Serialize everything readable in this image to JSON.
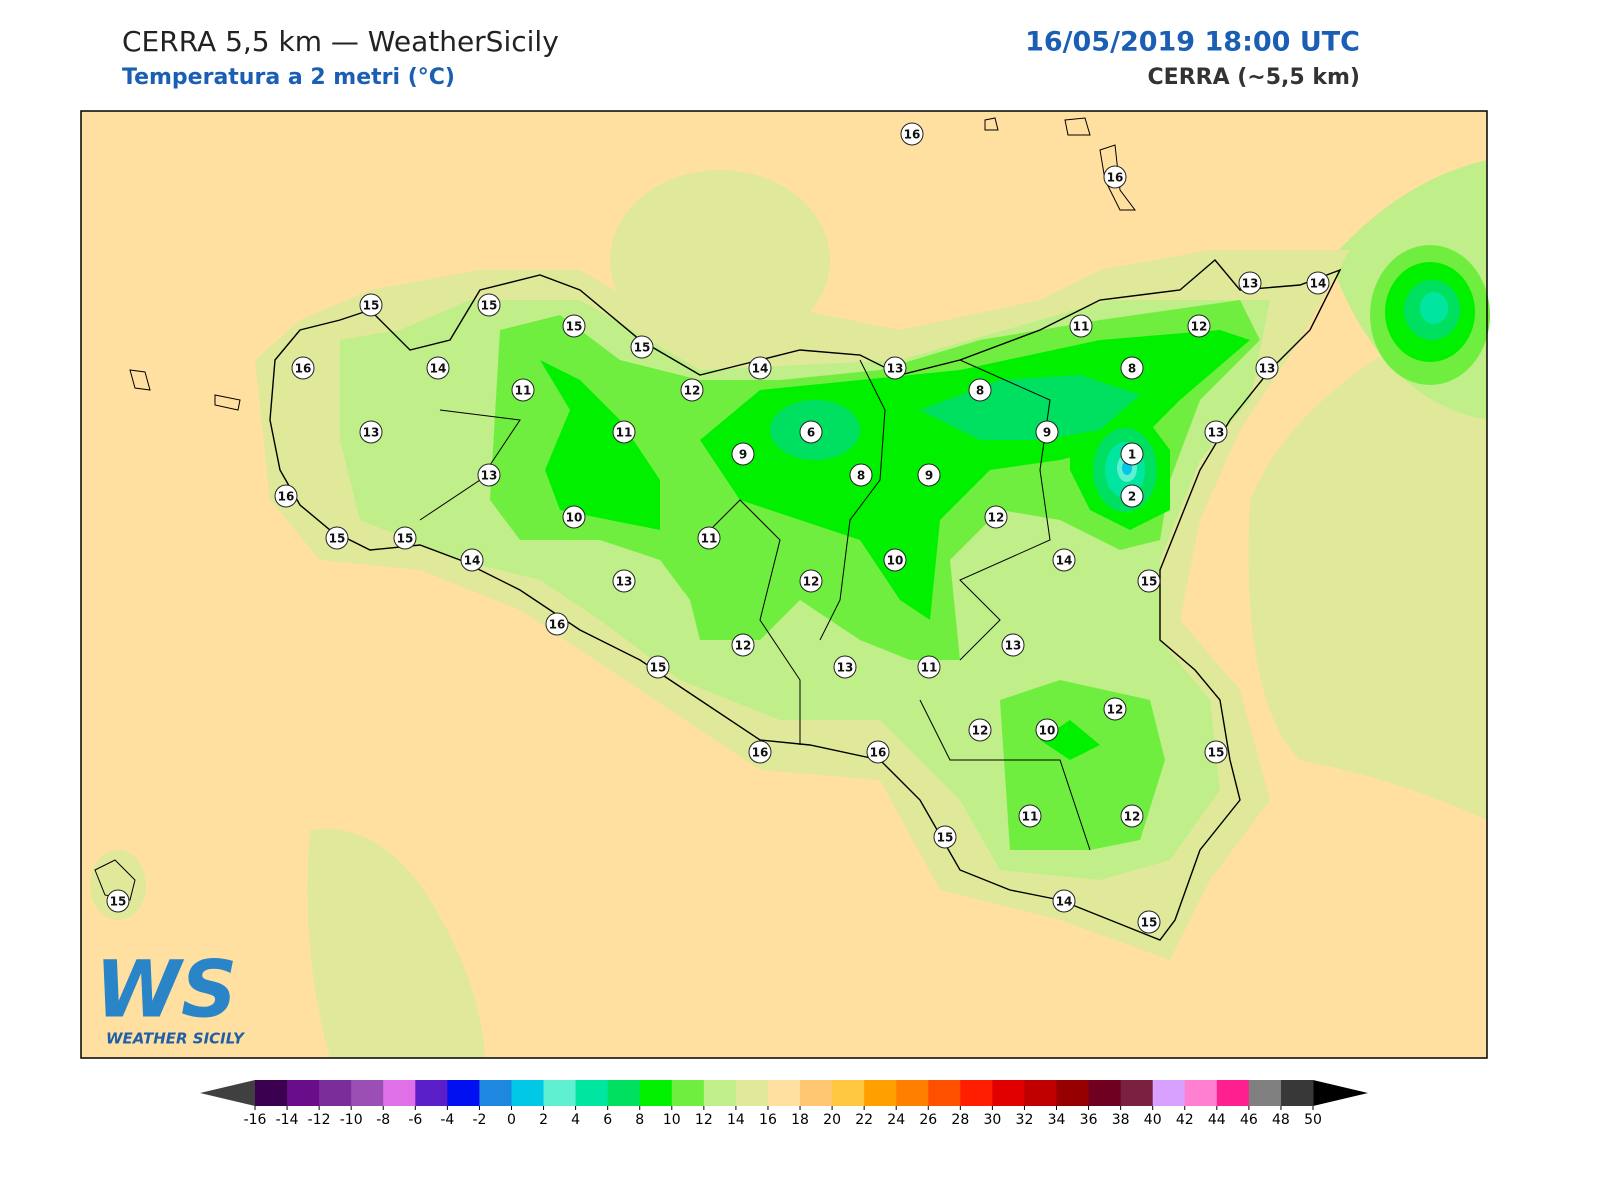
{
  "header": {
    "title": "CERRA 5,5 km — WeatherSicily",
    "subtitle": "Temperatura a 2 metri (°C)",
    "datetime": "16/05/2019 18:00 UTC",
    "model": "CERRA (~5,5 km)"
  },
  "stations": [
    16,
    16,
    15,
    15,
    15,
    15,
    13,
    14,
    11,
    12,
    16,
    14,
    11,
    12,
    14,
    13,
    8,
    8,
    13,
    13,
    11,
    6,
    9,
    13,
    9,
    1,
    13,
    8,
    9,
    2,
    16,
    10,
    12,
    15,
    15,
    11,
    14,
    10,
    14,
    13,
    12,
    15,
    16,
    12,
    13,
    15,
    13,
    11,
    12,
    12,
    10,
    16,
    16,
    15,
    11,
    12,
    15,
    15,
    14,
    15
  ],
  "colorbar": {
    "ticks": [
      -16,
      -14,
      -12,
      -10,
      -8,
      -6,
      -4,
      -2,
      0,
      2,
      4,
      6,
      8,
      10,
      12,
      14,
      16,
      18,
      20,
      22,
      24,
      26,
      28,
      30,
      32,
      34,
      36,
      38,
      40,
      42,
      44,
      46,
      48,
      50
    ],
    "colors": [
      "#3c0050",
      "#6a0d8a",
      "#7b2d9a",
      "#9b4fb5",
      "#e070e8",
      "#5a1fc8",
      "#0010f0",
      "#1e88e0",
      "#00c8e6",
      "#5ef0d0",
      "#00e6a0",
      "#00e060",
      "#00f000",
      "#70ee40",
      "#c0ee88",
      "#e0e89a",
      "#ffe0a0",
      "#ffc870",
      "#ffc840",
      "#ffa000",
      "#ff8000",
      "#ff5000",
      "#ff1e00",
      "#e00000",
      "#c00000",
      "#960000",
      "#700020",
      "#7a2040",
      "#d8a0ff",
      "#ff80d0",
      "#ff2090",
      "#808080",
      "#383838"
    ],
    "under_color": "#404040",
    "over_color": "#000000"
  },
  "logo": {
    "mark": "WS",
    "text": "WEATHER SICILY"
  }
}
